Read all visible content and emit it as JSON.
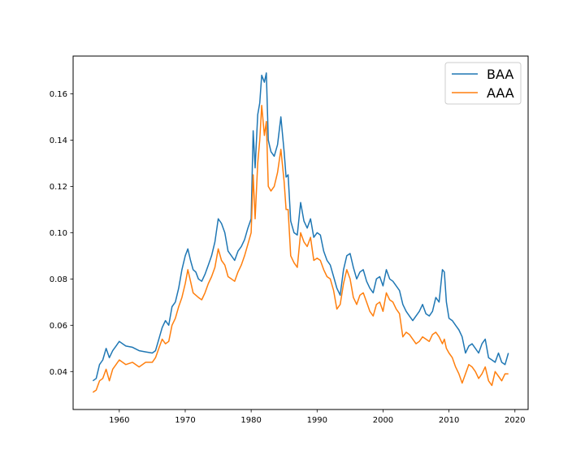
{
  "chart_data": {
    "type": "line",
    "title": "",
    "xlabel": "",
    "ylabel": "",
    "xlim": [
      1953,
      2022
    ],
    "ylim": [
      0.0236,
      0.1763
    ],
    "xticks": [
      1960,
      1970,
      1980,
      1990,
      2000,
      2010,
      2020
    ],
    "yticks": [
      0.04,
      0.06,
      0.08,
      0.1,
      0.12,
      0.14,
      0.16
    ],
    "ytick_labels": [
      "0.04",
      "0.06",
      "0.08",
      "0.10",
      "0.12",
      "0.14",
      "0.16"
    ],
    "grid": false,
    "legend": {
      "position": "top-right"
    },
    "series": [
      {
        "name": "BAA",
        "color": "#1f77b4",
        "x": [
          1956.0,
          1956.5,
          1957.0,
          1957.5,
          1958.0,
          1958.5,
          1959.0,
          1959.5,
          1960.0,
          1960.5,
          1961.0,
          1962.0,
          1963.0,
          1964.0,
          1965.0,
          1965.5,
          1966.0,
          1966.5,
          1967.0,
          1967.5,
          1968.0,
          1968.5,
          1969.0,
          1969.5,
          1970.0,
          1970.4,
          1970.8,
          1971.2,
          1971.6,
          1972.0,
          1972.5,
          1973.0,
          1973.5,
          1974.0,
          1974.5,
          1975.0,
          1975.5,
          1976.0,
          1976.5,
          1977.0,
          1977.5,
          1978.0,
          1978.5,
          1979.0,
          1979.5,
          1980.0,
          1980.3,
          1980.6,
          1981.0,
          1981.3,
          1981.6,
          1982.0,
          1982.3,
          1982.6,
          1983.0,
          1983.5,
          1984.0,
          1984.5,
          1985.0,
          1985.3,
          1985.6,
          1986.0,
          1986.5,
          1987.0,
          1987.5,
          1988.0,
          1988.5,
          1989.0,
          1989.5,
          1990.0,
          1990.5,
          1991.0,
          1991.5,
          1992.0,
          1992.5,
          1993.0,
          1993.5,
          1994.0,
          1994.5,
          1995.0,
          1995.5,
          1996.0,
          1996.5,
          1997.0,
          1997.5,
          1998.0,
          1998.5,
          1999.0,
          1999.5,
          2000.0,
          2000.5,
          2001.0,
          2001.5,
          2002.0,
          2002.5,
          2003.0,
          2003.5,
          2004.0,
          2004.5,
          2005.0,
          2005.5,
          2006.0,
          2006.5,
          2007.0,
          2007.5,
          2008.0,
          2008.5,
          2009.0,
          2009.3,
          2009.6,
          2010.0,
          2010.5,
          2011.0,
          2011.5,
          2012.0,
          2012.5,
          2013.0,
          2013.5,
          2014.0,
          2014.5,
          2015.0,
          2015.5,
          2016.0,
          2016.5,
          2017.0,
          2017.5,
          2018.0,
          2018.5,
          2019.0
        ],
        "y": [
          0.036,
          0.037,
          0.043,
          0.045,
          0.05,
          0.046,
          0.049,
          0.051,
          0.053,
          0.052,
          0.051,
          0.0505,
          0.049,
          0.0485,
          0.048,
          0.049,
          0.054,
          0.059,
          0.062,
          0.06,
          0.068,
          0.07,
          0.076,
          0.084,
          0.09,
          0.093,
          0.088,
          0.084,
          0.083,
          0.08,
          0.079,
          0.082,
          0.086,
          0.09,
          0.096,
          0.106,
          0.104,
          0.1,
          0.092,
          0.09,
          0.088,
          0.092,
          0.094,
          0.097,
          0.102,
          0.106,
          0.144,
          0.128,
          0.151,
          0.156,
          0.168,
          0.165,
          0.169,
          0.14,
          0.135,
          0.133,
          0.138,
          0.15,
          0.135,
          0.124,
          0.125,
          0.105,
          0.1,
          0.099,
          0.113,
          0.105,
          0.102,
          0.106,
          0.098,
          0.1,
          0.099,
          0.092,
          0.088,
          0.086,
          0.081,
          0.076,
          0.073,
          0.084,
          0.09,
          0.091,
          0.085,
          0.08,
          0.083,
          0.084,
          0.079,
          0.076,
          0.074,
          0.08,
          0.081,
          0.077,
          0.084,
          0.08,
          0.079,
          0.077,
          0.075,
          0.069,
          0.066,
          0.064,
          0.062,
          0.064,
          0.066,
          0.069,
          0.065,
          0.064,
          0.066,
          0.072,
          0.07,
          0.084,
          0.083,
          0.07,
          0.063,
          0.062,
          0.06,
          0.058,
          0.055,
          0.048,
          0.051,
          0.052,
          0.05,
          0.048,
          0.052,
          0.054,
          0.046,
          0.045,
          0.044,
          0.048,
          0.044,
          0.043,
          0.048
        ]
      },
      {
        "name": "AAA",
        "color": "#ff7f0e",
        "x": [
          1956.0,
          1956.5,
          1957.0,
          1957.5,
          1958.0,
          1958.5,
          1959.0,
          1959.5,
          1960.0,
          1960.5,
          1961.0,
          1962.0,
          1963.0,
          1964.0,
          1965.0,
          1965.5,
          1966.0,
          1966.5,
          1967.0,
          1967.5,
          1968.0,
          1968.5,
          1969.0,
          1969.5,
          1970.0,
          1970.4,
          1970.8,
          1971.2,
          1971.6,
          1972.0,
          1972.5,
          1973.0,
          1973.5,
          1974.0,
          1974.5,
          1975.0,
          1975.5,
          1976.0,
          1976.5,
          1977.0,
          1977.5,
          1978.0,
          1978.5,
          1979.0,
          1979.5,
          1980.0,
          1980.3,
          1980.6,
          1981.0,
          1981.3,
          1981.6,
          1982.0,
          1982.3,
          1982.6,
          1983.0,
          1983.5,
          1984.0,
          1984.5,
          1985.0,
          1985.3,
          1985.6,
          1986.0,
          1986.5,
          1987.0,
          1987.5,
          1988.0,
          1988.5,
          1989.0,
          1989.5,
          1990.0,
          1990.5,
          1991.0,
          1991.5,
          1992.0,
          1992.5,
          1993.0,
          1993.5,
          1994.0,
          1994.5,
          1995.0,
          1995.5,
          1996.0,
          1996.5,
          1997.0,
          1997.5,
          1998.0,
          1998.5,
          1999.0,
          1999.5,
          2000.0,
          2000.5,
          2001.0,
          2001.5,
          2002.0,
          2002.5,
          2003.0,
          2003.5,
          2004.0,
          2004.5,
          2005.0,
          2005.5,
          2006.0,
          2006.5,
          2007.0,
          2007.5,
          2008.0,
          2008.5,
          2009.0,
          2009.3,
          2009.6,
          2010.0,
          2010.5,
          2011.0,
          2011.5,
          2012.0,
          2012.5,
          2013.0,
          2013.5,
          2014.0,
          2014.5,
          2015.0,
          2015.5,
          2016.0,
          2016.5,
          2017.0,
          2017.5,
          2018.0,
          2018.5,
          2019.0
        ],
        "y": [
          0.031,
          0.032,
          0.036,
          0.037,
          0.041,
          0.036,
          0.041,
          0.043,
          0.045,
          0.044,
          0.043,
          0.044,
          0.042,
          0.044,
          0.044,
          0.046,
          0.05,
          0.054,
          0.052,
          0.053,
          0.06,
          0.063,
          0.068,
          0.072,
          0.078,
          0.084,
          0.079,
          0.074,
          0.073,
          0.072,
          0.071,
          0.074,
          0.078,
          0.081,
          0.085,
          0.093,
          0.088,
          0.086,
          0.081,
          0.08,
          0.079,
          0.083,
          0.086,
          0.09,
          0.095,
          0.1,
          0.125,
          0.106,
          0.13,
          0.14,
          0.155,
          0.142,
          0.148,
          0.12,
          0.118,
          0.12,
          0.126,
          0.136,
          0.122,
          0.11,
          0.11,
          0.09,
          0.087,
          0.085,
          0.1,
          0.096,
          0.094,
          0.098,
          0.088,
          0.089,
          0.088,
          0.084,
          0.081,
          0.08,
          0.075,
          0.067,
          0.069,
          0.078,
          0.084,
          0.08,
          0.072,
          0.069,
          0.073,
          0.074,
          0.07,
          0.066,
          0.064,
          0.069,
          0.07,
          0.066,
          0.074,
          0.071,
          0.07,
          0.067,
          0.065,
          0.055,
          0.057,
          0.056,
          0.054,
          0.052,
          0.053,
          0.055,
          0.054,
          0.053,
          0.056,
          0.057,
          0.055,
          0.052,
          0.054,
          0.05,
          0.048,
          0.046,
          0.042,
          0.039,
          0.035,
          0.039,
          0.043,
          0.042,
          0.04,
          0.037,
          0.039,
          0.042,
          0.036,
          0.034,
          0.04,
          0.038,
          0.036,
          0.039,
          0.039
        ]
      }
    ]
  }
}
